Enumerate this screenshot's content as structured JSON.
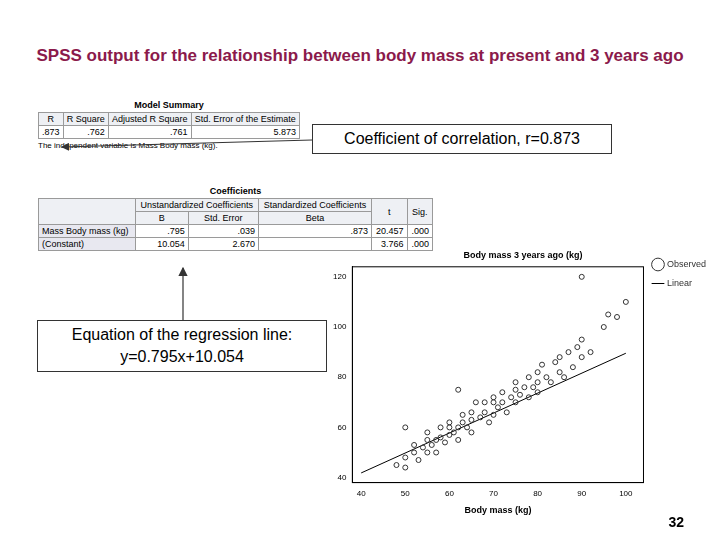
{
  "title": "SPSS output for the relationship between body mass at present and 3 years ago",
  "model_summary": {
    "heading": "Model Summary",
    "columns": [
      "R",
      "R Square",
      "Adjusted R Square",
      "Std. Error of the Estimate"
    ],
    "rows": [
      [
        ".873",
        ".762",
        ".761",
        "5.873"
      ]
    ],
    "footnote": "The independent variable is Mass Body mass (kg)."
  },
  "coefficients": {
    "heading": "Coefficients",
    "group_headers": [
      {
        "label": "Unstandardized Coefficients",
        "of": [
          "B",
          "Std. Error"
        ]
      },
      {
        "label": "Standardized Coefficients",
        "of": [
          "Beta"
        ]
      }
    ],
    "columns": [
      null,
      "B",
      "Std. Error",
      "Beta",
      "t",
      "Sig."
    ],
    "rows": [
      [
        "Mass Body mass (kg)",
        ".795",
        ".039",
        ".873",
        "20.457",
        ".000"
      ],
      [
        "(Constant)",
        "10.054",
        "2.670",
        null,
        "3.766",
        ".000"
      ]
    ]
  },
  "callouts": [
    [
      "Coefficient of correlation, r=0.873"
    ],
    [
      "Equation of the regression line:",
      "y=0.795x+10.054"
    ]
  ],
  "page_number": "32",
  "chart_data": {
    "type": "scatter",
    "y_label": "Body mass 3 years ago (kg)",
    "x_label": "Body mass (kg)",
    "xlim": [
      38,
      104
    ],
    "xticks": [
      40,
      50,
      60,
      70,
      80,
      90,
      100
    ],
    "ylim": [
      38,
      124
    ],
    "yticks": [
      40,
      60,
      80,
      100,
      120
    ],
    "grid": false,
    "legend": "top-right",
    "series": [
      {
        "name": "Observed",
        "type": "scatter",
        "marker": "circle",
        "color": "#333333",
        "x": [
          48,
          50,
          50,
          52,
          52,
          53,
          54,
          55,
          55,
          55,
          56,
          57,
          57,
          58,
          58,
          59,
          60,
          60,
          60,
          61,
          62,
          62,
          63,
          63,
          64,
          65,
          65,
          65,
          66,
          67,
          68,
          68,
          69,
          70,
          70,
          70,
          71,
          72,
          72,
          73,
          74,
          75,
          75,
          75,
          76,
          77,
          78,
          78,
          79,
          80,
          80,
          80,
          81,
          82,
          83,
          84,
          85,
          85,
          86,
          87,
          88,
          89,
          90,
          90,
          92,
          95,
          96,
          98,
          90,
          50,
          62,
          100
        ],
        "values": [
          45,
          44,
          48,
          50,
          53,
          47,
          52,
          50,
          55,
          58,
          53,
          55,
          50,
          56,
          60,
          54,
          57,
          60,
          62,
          58,
          60,
          55,
          62,
          65,
          60,
          63,
          66,
          58,
          70,
          64,
          66,
          70,
          62,
          65,
          70,
          72,
          68,
          74,
          70,
          66,
          72,
          75,
          70,
          78,
          73,
          76,
          72,
          80,
          76,
          78,
          82,
          74,
          85,
          80,
          78,
          86,
          82,
          88,
          80,
          90,
          84,
          92,
          88,
          95,
          90,
          100,
          105,
          104,
          120,
          60,
          75,
          110
        ]
      },
      {
        "name": "Linear",
        "type": "line",
        "marker": "none",
        "line_style": "solid",
        "color": "#000000",
        "x": [
          40,
          100
        ],
        "values": [
          41.85,
          89.55
        ]
      }
    ]
  }
}
